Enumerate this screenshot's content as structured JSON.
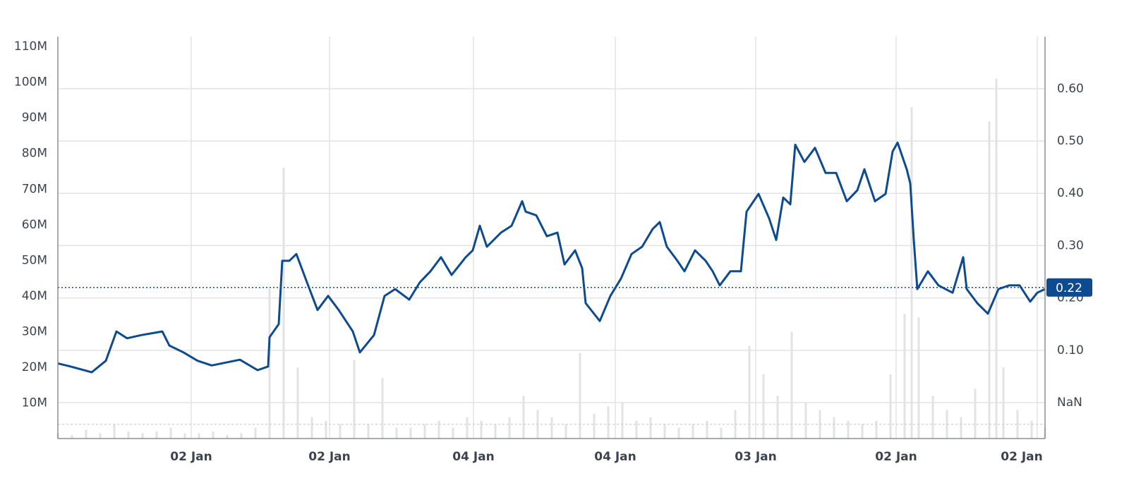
{
  "chart_data": {
    "type": "line",
    "x": [
      0,
      18,
      48,
      68,
      83,
      98,
      118,
      148,
      158,
      178,
      198,
      218,
      258,
      283,
      298,
      300,
      313,
      318,
      328,
      338,
      353,
      368,
      383,
      398,
      418,
      428,
      448,
      463,
      478,
      498,
      513,
      528,
      543,
      558,
      578,
      588,
      598,
      608,
      628,
      643,
      658,
      663,
      678,
      693,
      708,
      718,
      733,
      743,
      748,
      768,
      783,
      798,
      813,
      828,
      843,
      853,
      863,
      878,
      888,
      903,
      918,
      928,
      938,
      953,
      968,
      976,
      993,
      1008,
      1018,
      1028,
      1038,
      1045,
      1058,
      1073,
      1088,
      1103,
      1118,
      1133,
      1143,
      1158,
      1173,
      1183,
      1190,
      1203,
      1208,
      1213,
      1218,
      1233,
      1248,
      1268,
      1283,
      1288,
      1303,
      1318,
      1333,
      1348,
      1363,
      1378,
      1388,
      1399
    ],
    "values": [
      0.075,
      0.069,
      0.058,
      0.08,
      0.136,
      0.123,
      0.129,
      0.136,
      0.109,
      0.096,
      0.08,
      0.071,
      0.082,
      0.062,
      0.069,
      0.125,
      0.15,
      0.271,
      0.271,
      0.284,
      0.23,
      0.177,
      0.204,
      0.177,
      0.136,
      0.096,
      0.129,
      0.204,
      0.217,
      0.197,
      0.23,
      0.251,
      0.278,
      0.244,
      0.278,
      0.291,
      0.338,
      0.298,
      0.325,
      0.338,
      0.385,
      0.365,
      0.358,
      0.318,
      0.325,
      0.264,
      0.291,
      0.257,
      0.19,
      0.156,
      0.204,
      0.237,
      0.284,
      0.298,
      0.332,
      0.345,
      0.298,
      0.271,
      0.251,
      0.291,
      0.271,
      0.251,
      0.224,
      0.251,
      0.251,
      0.365,
      0.399,
      0.352,
      0.311,
      0.392,
      0.379,
      0.493,
      0.46,
      0.487,
      0.439,
      0.439,
      0.385,
      0.406,
      0.446,
      0.385,
      0.399,
      0.48,
      0.497,
      0.446,
      0.419,
      0.311,
      0.217,
      0.251,
      0.224,
      0.21,
      0.278,
      0.217,
      0.19,
      0.17,
      0.217,
      0.224,
      0.224,
      0.193,
      0.21,
      0.217
    ],
    "color": "#0d4a8f",
    "axis": "y2",
    "last_price": 0.22,
    "volume": {
      "type": "bar",
      "color": "#e2e2e2",
      "x": [
        0,
        20,
        40,
        60,
        80,
        100,
        120,
        140,
        160,
        180,
        200,
        220,
        240,
        260,
        280,
        300,
        320,
        340,
        360,
        380,
        400,
        420,
        440,
        460,
        480,
        500,
        520,
        540,
        560,
        580,
        600,
        620,
        640,
        660,
        680,
        700,
        720,
        740,
        760,
        780,
        800,
        820,
        840,
        860,
        880,
        900,
        920,
        940,
        960,
        980,
        1000,
        1020,
        1040,
        1060,
        1080,
        1100,
        1120,
        1140,
        1160,
        1180,
        1200,
        1210,
        1220,
        1240,
        1260,
        1280,
        1300,
        1320,
        1330,
        1340,
        1360,
        1380,
        1399
      ],
      "values": [
        1500000,
        1000000,
        2500000,
        1500000,
        4000000,
        2000000,
        1500000,
        2000000,
        3000000,
        1500000,
        1500000,
        2000000,
        1000000,
        1500000,
        3000000,
        42000000,
        76000000,
        20000000,
        6000000,
        5000000,
        4000000,
        22000000,
        4000000,
        17000000,
        3000000,
        3000000,
        4000000,
        5000000,
        3000000,
        6000000,
        5000000,
        4000000,
        6000000,
        12000000,
        8000000,
        6000000,
        4000000,
        24000000,
        7000000,
        9000000,
        10000000,
        5000000,
        6000000,
        4000000,
        3000000,
        4000000,
        5000000,
        3000000,
        8000000,
        26000000,
        18000000,
        12000000,
        30000000,
        10000000,
        8000000,
        6000000,
        5000000,
        4000000,
        5000000,
        18000000,
        35000000,
        93000000,
        34000000,
        12000000,
        8000000,
        6000000,
        14000000,
        89000000,
        101000000,
        20000000,
        8000000,
        5000000,
        3000000
      ],
      "average": 4000000
    },
    "xlim": [
      0,
      1399
    ],
    "xticks": [
      {
        "value": 189,
        "label": "02 Jan"
      },
      {
        "value": 385,
        "label": "02 Jan"
      },
      {
        "value": 589,
        "label": "04 Jan"
      },
      {
        "value": 790,
        "label": "04 Jan"
      },
      {
        "value": 989,
        "label": "03 Jan"
      },
      {
        "value": 1188,
        "label": "02 Jan"
      },
      {
        "value": 1388,
        "label": "02 Jan"
      }
    ],
    "ylim": [
      0,
      112800000
    ],
    "yticks": [
      {
        "value": 10000000,
        "label": "10M"
      },
      {
        "value": 20000000,
        "label": "20M"
      },
      {
        "value": 30000000,
        "label": "30M"
      },
      {
        "value": 40000000,
        "label": "40M"
      },
      {
        "value": 50000000,
        "label": "50M"
      },
      {
        "value": 60000000,
        "label": "60M"
      },
      {
        "value": 70000000,
        "label": "70M"
      },
      {
        "value": 80000000,
        "label": "80M"
      },
      {
        "value": 90000000,
        "label": "90M"
      },
      {
        "value": 100000000,
        "label": "100M"
      },
      {
        "value": 110000000,
        "label": "110M"
      }
    ],
    "y2lim": [
      -0.0687,
      0.6995
    ],
    "y2ticks": [
      {
        "value": 0,
        "label": "NaN"
      },
      {
        "value": 0.1,
        "label": "0.10"
      },
      {
        "value": 0.2,
        "label": "0.20"
      },
      {
        "value": 0.3,
        "label": "0.30"
      },
      {
        "value": 0.4,
        "label": "0.40"
      },
      {
        "value": 0.5,
        "label": "0.50"
      },
      {
        "value": 0.6,
        "label": "0.60"
      }
    ],
    "grid": true
  }
}
